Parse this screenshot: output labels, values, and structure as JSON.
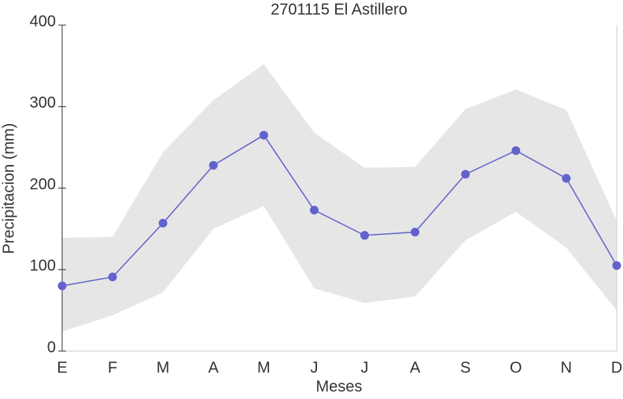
{
  "chart_data": {
    "type": "line",
    "title": "2701115 El Astillero",
    "xlabel": "Meses",
    "ylabel": "Precipitacion (mm)",
    "categories": [
      "E",
      "F",
      "M",
      "A",
      "M",
      "J",
      "J",
      "A",
      "S",
      "O",
      "N",
      "D"
    ],
    "series": [
      {
        "color": "#6262cc",
        "values": [
          80,
          91,
          157,
          228,
          265,
          173,
          142,
          146,
          217,
          246,
          212,
          105
        ]
      }
    ],
    "band": {
      "color": "#e6e6e6",
      "upper": [
        139,
        140,
        244,
        308,
        352,
        268,
        225,
        226,
        297,
        321,
        296,
        160
      ],
      "lower": [
        24,
        44,
        72,
        150,
        178,
        77,
        59,
        67,
        136,
        171,
        127,
        50
      ]
    },
    "ylim": [
      0,
      400
    ],
    "yticks": [
      0,
      100,
      200,
      300,
      400
    ]
  }
}
